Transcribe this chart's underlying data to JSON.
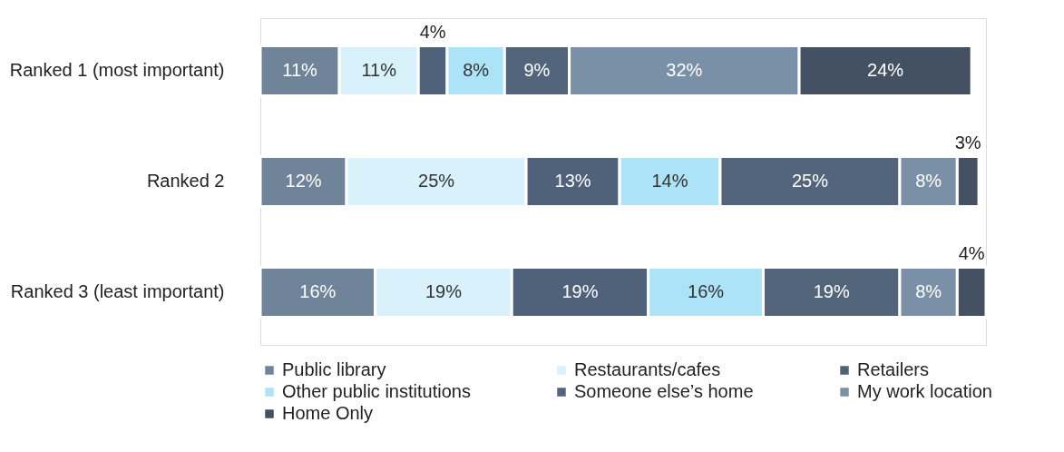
{
  "chart_data": {
    "type": "bar",
    "orientation": "horizontal",
    "stacked": true,
    "legend": "bottom",
    "categories": [
      "Ranked 1 (most important)",
      "Ranked 2",
      "Ranked 3 (least important)"
    ],
    "series": [
      {
        "name": "Public library",
        "color": "#6f8498",
        "values": [
          11,
          12,
          16
        ],
        "value_labels": [
          "11%",
          "12%",
          "16%"
        ]
      },
      {
        "name": "Restaurants/cafes",
        "color": "#d8f1fa",
        "values": [
          11,
          25,
          19
        ],
        "value_labels": [
          "11%",
          "25%",
          "19%"
        ]
      },
      {
        "name": "Retailers",
        "color": "#4f6279",
        "values": [
          4,
          13,
          19
        ],
        "value_labels": [
          "4%",
          "13%",
          "19%"
        ]
      },
      {
        "name": "Other public institutions",
        "color": "#ade3f6",
        "values": [
          8,
          14,
          16
        ],
        "value_labels": [
          "8%",
          "14%",
          "16%"
        ]
      },
      {
        "name": "Someone else’s home",
        "color": "#53657b",
        "values": [
          9,
          25,
          19
        ],
        "value_labels": [
          "9%",
          "25%",
          "19%"
        ]
      },
      {
        "name": "My work location",
        "color": "#7990a7",
        "values": [
          32,
          8,
          8
        ],
        "value_labels": [
          "32%",
          "8%",
          "8%"
        ]
      },
      {
        "name": "Home Only",
        "color": "#435162",
        "values": [
          24,
          3,
          4
        ],
        "value_labels": [
          "24%",
          "3%",
          "4%"
        ]
      }
    ]
  }
}
